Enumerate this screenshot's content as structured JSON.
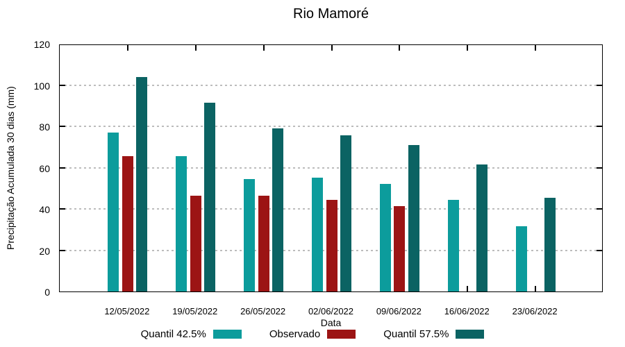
{
  "chart_data": {
    "type": "bar",
    "title": "Rio Mamoré",
    "xlabel": "Data",
    "ylabel": "Precipitação Acumulada 30 dias (mm)",
    "ylim": [
      0,
      120
    ],
    "yticks": [
      0,
      20,
      40,
      60,
      80,
      100,
      120
    ],
    "grid": "horizontal-dotted",
    "legend_position": "bottom",
    "categories": [
      "12/05/2022",
      "19/05/2022",
      "26/05/2022",
      "02/06/2022",
      "09/06/2022",
      "16/06/2022",
      "23/06/2022"
    ],
    "series": [
      {
        "name": "Quantil 42.5%",
        "color": "#0C9C9C",
        "values": [
          77,
          65.5,
          54.5,
          55,
          52,
          44.5,
          31.5
        ]
      },
      {
        "name": "Observado",
        "color": "#9C1414",
        "values": [
          65.5,
          46.5,
          46.5,
          44.5,
          41.5,
          null,
          null
        ]
      },
      {
        "name": "Quantil 57.5%",
        "color": "#0B6363",
        "values": [
          104,
          91.5,
          79,
          75.5,
          71,
          61.5,
          45.5
        ]
      }
    ]
  }
}
